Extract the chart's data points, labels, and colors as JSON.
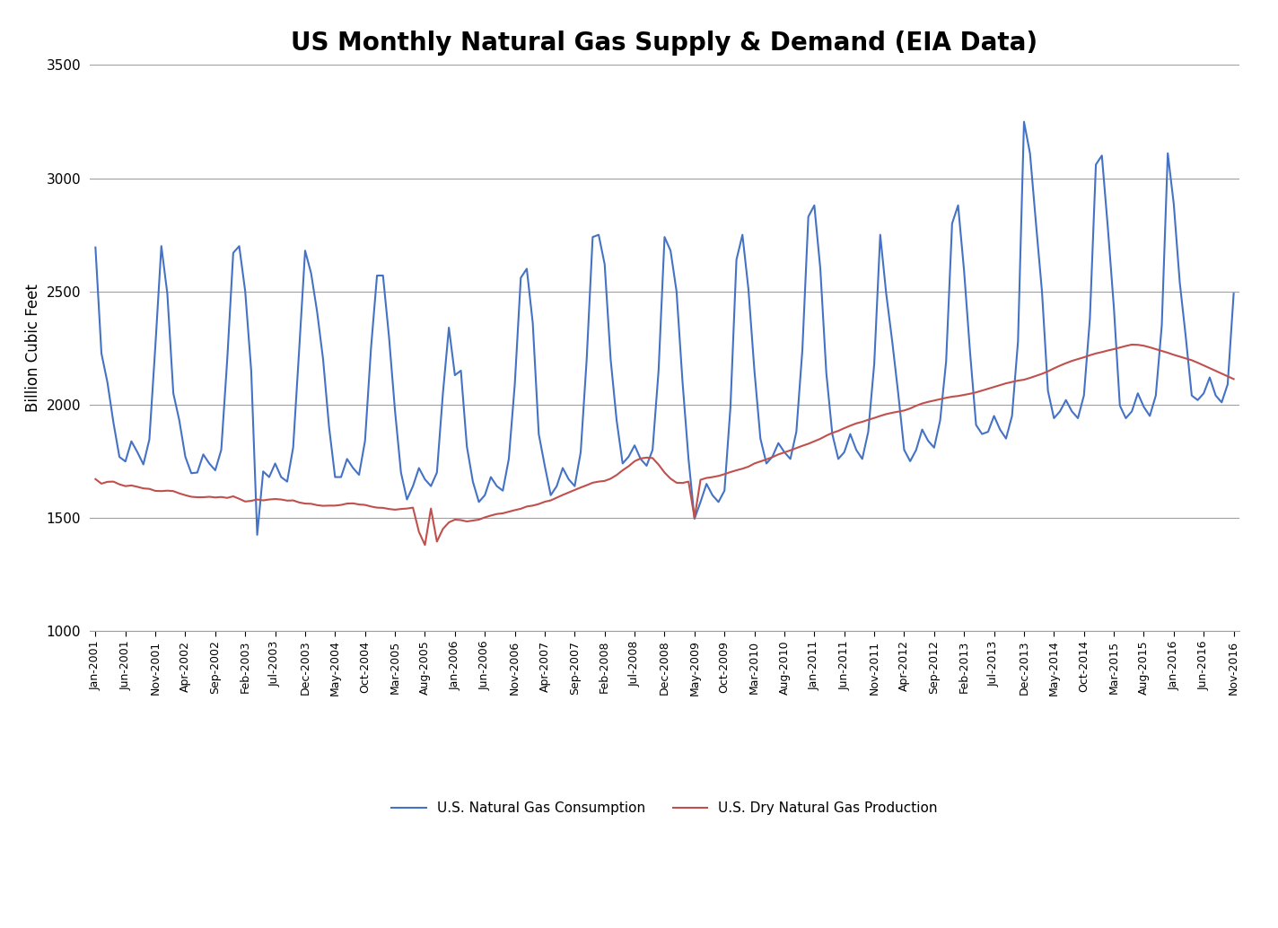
{
  "title": "US Monthly Natural Gas Supply & Demand (EIA Data)",
  "ylabel": "Billion Cubic Feet",
  "ylim": [
    1000,
    3500
  ],
  "yticks": [
    1000,
    1500,
    2000,
    2500,
    3000,
    3500
  ],
  "line1_label": "U.S. Natural Gas Consumption",
  "line2_label": "U.S. Dry Natural Gas Production",
  "line1_color": "#4472C4",
  "line2_color": "#C0504D",
  "background_color": "#FFFFFF",
  "title_fontsize": 20,
  "tick_labels": [
    "Jan-2001",
    "Jun-2001",
    "Nov-2001",
    "Apr-2002",
    "Sep-2002",
    "Feb-2003",
    "Jul-2003",
    "Dec-2003",
    "May-2004",
    "Oct-2004",
    "Mar-2005",
    "Aug-2005",
    "Jan-2006",
    "Jun-2006",
    "Nov-2006",
    "Apr-2007",
    "Sep-2007",
    "Feb-2008",
    "Jul-2008",
    "Dec-2008",
    "May-2009",
    "Oct-2009",
    "Mar-2010",
    "Aug-2010",
    "Jan-2011",
    "Jun-2011",
    "Nov-2011",
    "Apr-2012",
    "Sep-2012",
    "Feb-2013",
    "Jul-2013",
    "Dec-2013",
    "May-2014",
    "Oct-2014",
    "Mar-2015",
    "Aug-2015",
    "Jan-2016",
    "Jun-2016",
    "Nov-2016"
  ],
  "consumption_data": [
    2694,
    2226,
    2098,
    1921,
    1769,
    1749,
    1838,
    1790,
    1736,
    1846,
    2259,
    2700,
    2490,
    2050,
    1930,
    1770,
    1697,
    1700,
    1780,
    1740,
    1710,
    1800,
    2200,
    2670,
    2700,
    2500,
    2150,
    1425,
    1705,
    1680,
    1740,
    1680,
    1660,
    1810,
    2240,
    2680,
    2580,
    2410,
    2200,
    1900,
    1680,
    1680,
    1760,
    1720,
    1690,
    1840,
    2250,
    2570,
    2570,
    2300,
    1974,
    1700,
    1581,
    1640,
    1720,
    1670,
    1640,
    1700,
    2050,
    2340,
    2130,
    2150,
    1815,
    1660,
    1570,
    1600,
    1680,
    1640,
    1620,
    1760,
    2090,
    2560,
    2600,
    2360,
    1870,
    1730,
    1600,
    1640,
    1720,
    1670,
    1640,
    1790,
    2200,
    2740,
    2750,
    2620,
    2200,
    1930,
    1740,
    1770,
    1820,
    1760,
    1730,
    1800,
    2150,
    2740,
    2680,
    2500,
    2100,
    1760,
    1496,
    1570,
    1650,
    1600,
    1570,
    1620,
    1990,
    2640,
    2750,
    2510,
    2150,
    1850,
    1740,
    1770,
    1830,
    1790,
    1760,
    1880,
    2240,
    2830,
    2880,
    2600,
    2140,
    1870,
    1760,
    1790,
    1870,
    1800,
    1760,
    1880,
    2180,
    2750,
    2490,
    2280,
    2050,
    1800,
    1750,
    1800,
    1890,
    1840,
    1810,
    1930,
    2190,
    2800,
    2880,
    2590,
    2230,
    1910,
    1870,
    1880,
    1950,
    1890,
    1850,
    1950,
    2280,
    3249,
    3110,
    2800,
    2500,
    2060,
    1940,
    1970,
    2020,
    1970,
    1940,
    2040,
    2380,
    3060,
    3100,
    2780,
    2430,
    1996,
    1940,
    1970,
    2050,
    1990,
    1950,
    2040,
    2350,
    3110,
    2886,
    2540,
    2300,
    2040,
    2020,
    2050,
    2120,
    2040,
    2010,
    2090,
    2490
  ],
  "production_data": [
    1671,
    1651,
    1659,
    1660,
    1648,
    1640,
    1643,
    1637,
    1630,
    1628,
    1619,
    1618,
    1620,
    1618,
    1608,
    1600,
    1593,
    1591,
    1591,
    1593,
    1590,
    1592,
    1588,
    1595,
    1584,
    1572,
    1575,
    1581,
    1577,
    1581,
    1583,
    1581,
    1576,
    1577,
    1568,
    1563,
    1562,
    1556,
    1553,
    1554,
    1554,
    1557,
    1563,
    1564,
    1559,
    1557,
    1550,
    1545,
    1544,
    1539,
    1536,
    1539,
    1541,
    1545,
    1438,
    1380,
    1541,
    1395,
    1451,
    1480,
    1492,
    1490,
    1484,
    1488,
    1492,
    1502,
    1510,
    1517,
    1520,
    1527,
    1534,
    1540,
    1550,
    1554,
    1561,
    1571,
    1577,
    1589,
    1601,
    1612,
    1623,
    1634,
    1644,
    1655,
    1660,
    1663,
    1673,
    1689,
    1710,
    1728,
    1750,
    1762,
    1766,
    1764,
    1735,
    1700,
    1673,
    1655,
    1654,
    1660,
    1499,
    1668,
    1676,
    1680,
    1685,
    1693,
    1702,
    1710,
    1717,
    1726,
    1740,
    1749,
    1758,
    1768,
    1780,
    1789,
    1798,
    1808,
    1818,
    1827,
    1838,
    1849,
    1863,
    1875,
    1884,
    1896,
    1907,
    1917,
    1924,
    1933,
    1941,
    1950,
    1958,
    1964,
    1969,
    1974,
    1983,
    1995,
    2005,
    2012,
    2018,
    2024,
    2030,
    2035,
    2038,
    2043,
    2048,
    2054,
    2062,
    2070,
    2078,
    2086,
    2094,
    2100,
    2106,
    2110,
    2118,
    2127,
    2136,
    2147,
    2160,
    2172,
    2183,
    2193,
    2201,
    2209,
    2218,
    2226,
    2232,
    2239,
    2245,
    2252,
    2259,
    2265,
    2264,
    2260,
    2253,
    2245,
    2237,
    2229,
    2220,
    2212,
    2204,
    2196,
    2185,
    2173,
    2161,
    2149,
    2137,
    2125,
    2113
  ]
}
